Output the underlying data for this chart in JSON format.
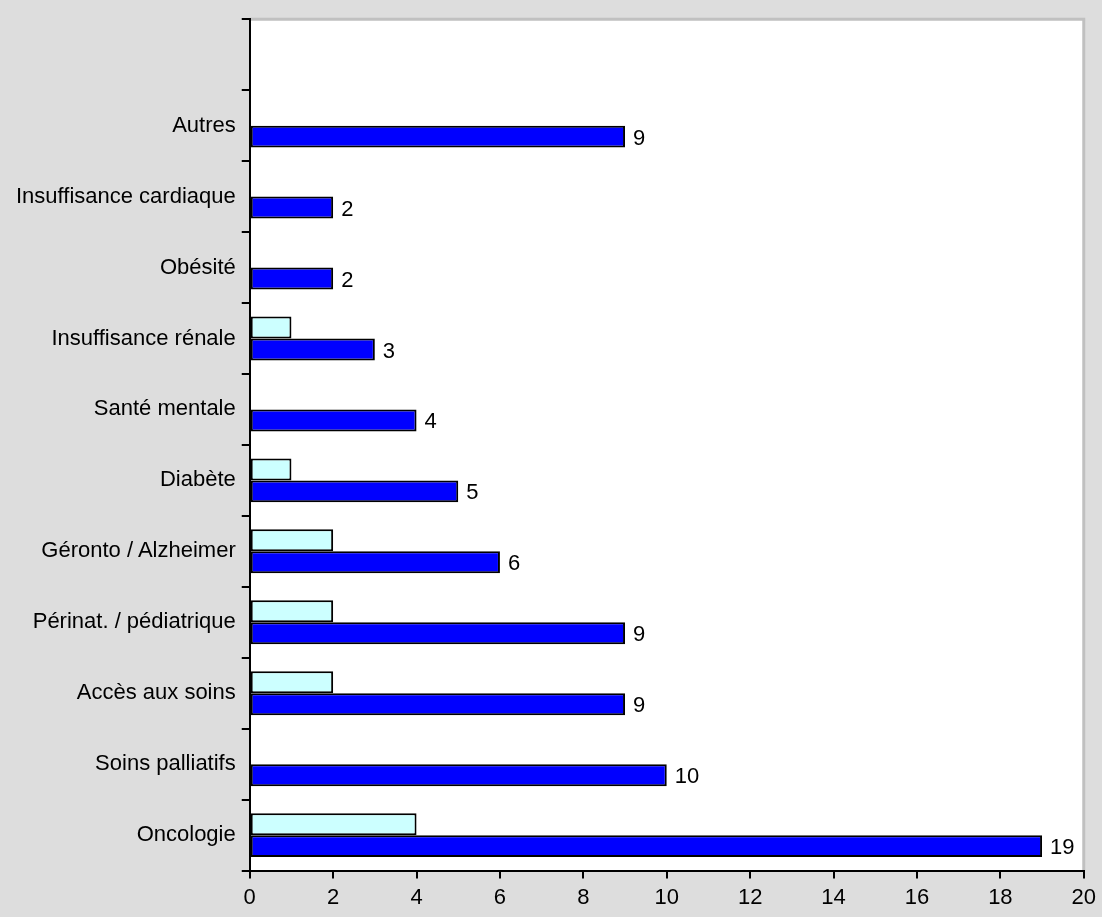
{
  "chart_data": {
    "type": "bar",
    "orientation": "horizontal",
    "categories": [
      null,
      "Autres",
      "Insuffisance cardiaque",
      "Obésité",
      "Insuffisance rénale",
      "Santé mentale",
      "Diabète",
      "Géronto / Alzheimer",
      "Périnat. / pédiatrique",
      "Accès aux soins",
      "Soins palliatifs",
      "Oncologie"
    ],
    "series": [
      {
        "color": "#ccffff",
        "values": [
          null,
          null,
          null,
          null,
          1,
          null,
          1,
          2,
          2,
          2,
          null,
          4
        ]
      },
      {
        "color": "#0000ff",
        "values": [
          null,
          9,
          2,
          2,
          3,
          4,
          5,
          6,
          9,
          9,
          10,
          19
        ],
        "value_labels": [
          null,
          "9",
          "2",
          "2",
          "3",
          "4",
          "5",
          "6",
          "9",
          "9",
          "10",
          "19"
        ]
      }
    ],
    "xlim": [
      0,
      20
    ],
    "xticks": [
      0,
      2,
      4,
      6,
      8,
      10,
      12,
      14,
      16,
      18,
      20
    ],
    "grid": false,
    "legend": false
  }
}
